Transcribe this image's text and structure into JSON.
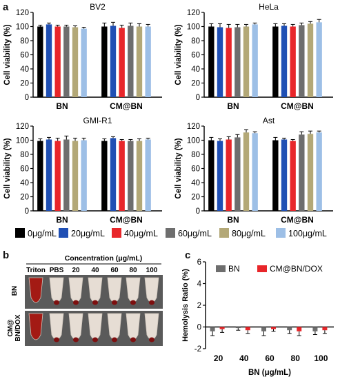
{
  "panel_labels": {
    "a": "a",
    "b": "b",
    "c": "c"
  },
  "colors": {
    "0": "#000000",
    "20": "#1f4fb4",
    "40": "#e8262a",
    "60": "#6e6e6e",
    "80": "#b3a877",
    "100": "#9dbfe6",
    "bn": "#6e6e6e",
    "cmbn_dox": "#e8262a"
  },
  "legend_a": [
    "0μg/mL",
    "20μg/mL",
    "40μg/mL",
    "60μg/mL",
    "80μg/mL",
    "100μg/mL"
  ],
  "photo": {
    "header": "Concentration (μg/mL)",
    "columns": [
      "Triton",
      "PBS",
      "20",
      "40",
      "60",
      "80",
      "100"
    ],
    "row_labels": [
      "BN",
      "CM@\nBN/DOX"
    ]
  },
  "chart_data": [
    {
      "type": "bar",
      "title": "BV2",
      "ylabel": "Cell viability (%)",
      "ylim": [
        0,
        120
      ],
      "yticks": [
        0,
        20,
        40,
        60,
        80,
        100,
        120
      ],
      "categories": [
        "BN",
        "CM@BN"
      ],
      "series": [
        {
          "name": "0μg/mL",
          "values": [
            100,
            100
          ],
          "errors": [
            2,
            5
          ]
        },
        {
          "name": "20μg/mL",
          "values": [
            103,
            101
          ],
          "errors": [
            2,
            5
          ]
        },
        {
          "name": "40μg/mL",
          "values": [
            100,
            98
          ],
          "errors": [
            2,
            4
          ]
        },
        {
          "name": "60μg/mL",
          "values": [
            100,
            101
          ],
          "errors": [
            2,
            4
          ]
        },
        {
          "name": "80μg/mL",
          "values": [
            99,
            100
          ],
          "errors": [
            2,
            4
          ]
        },
        {
          "name": "100μg/mL",
          "values": [
            97,
            100
          ],
          "errors": [
            2,
            3
          ]
        }
      ]
    },
    {
      "type": "bar",
      "title": "HeLa",
      "ylabel": "Cell viability (%)",
      "ylim": [
        0,
        120
      ],
      "yticks": [
        0,
        20,
        40,
        60,
        80,
        100,
        120
      ],
      "categories": [
        "BN",
        "CM@BN"
      ],
      "series": [
        {
          "name": "0μg/mL",
          "values": [
            100,
            100
          ],
          "errors": [
            4,
            4
          ]
        },
        {
          "name": "20μg/mL",
          "values": [
            99,
            101
          ],
          "errors": [
            5,
            3
          ]
        },
        {
          "name": "40μg/mL",
          "values": [
            98,
            100
          ],
          "errors": [
            5,
            3
          ]
        },
        {
          "name": "60μg/mL",
          "values": [
            99,
            102
          ],
          "errors": [
            4,
            3
          ]
        },
        {
          "name": "80μg/mL",
          "values": [
            100,
            104
          ],
          "errors": [
            3,
            3
          ]
        },
        {
          "name": "100μg/mL",
          "values": [
            103,
            106
          ],
          "errors": [
            2,
            4
          ]
        }
      ]
    },
    {
      "type": "bar",
      "title": "GMI-R1",
      "ylabel": "Cell viability (%)",
      "ylim": [
        0,
        120
      ],
      "yticks": [
        0,
        20,
        40,
        60,
        80,
        100,
        120
      ],
      "categories": [
        "BN",
        "CM@BN"
      ],
      "series": [
        {
          "name": "0μg/mL",
          "values": [
            99,
            99
          ],
          "errors": [
            3,
            3
          ]
        },
        {
          "name": "20μg/mL",
          "values": [
            101,
            103
          ],
          "errors": [
            3,
            2
          ]
        },
        {
          "name": "40μg/mL",
          "values": [
            99,
            99
          ],
          "errors": [
            4,
            2
          ]
        },
        {
          "name": "60μg/mL",
          "values": [
            101,
            99
          ],
          "errors": [
            5,
            2
          ]
        },
        {
          "name": "80μg/mL",
          "values": [
            99,
            99
          ],
          "errors": [
            4,
            3
          ]
        },
        {
          "name": "100μg/mL",
          "values": [
            100,
            101
          ],
          "errors": [
            3,
            2
          ]
        }
      ]
    },
    {
      "type": "bar",
      "title": "Ast",
      "ylabel": "Cell viability (%)",
      "ylim": [
        0,
        120
      ],
      "yticks": [
        0,
        20,
        40,
        60,
        80,
        100,
        120
      ],
      "categories": [
        "BN",
        "CM@BN"
      ],
      "series": [
        {
          "name": "0μg/mL",
          "values": [
            100,
            100
          ],
          "errors": [
            4,
            4
          ]
        },
        {
          "name": "20μg/mL",
          "values": [
            99,
            101
          ],
          "errors": [
            3,
            2
          ]
        },
        {
          "name": "40μg/mL",
          "values": [
            101,
            99
          ],
          "errors": [
            4,
            2
          ]
        },
        {
          "name": "60μg/mL",
          "values": [
            104,
            108
          ],
          "errors": [
            4,
            4
          ]
        },
        {
          "name": "80μg/mL",
          "values": [
            111,
            109
          ],
          "errors": [
            4,
            4
          ]
        },
        {
          "name": "100μg/mL",
          "values": [
            110,
            111
          ],
          "errors": [
            2,
            2
          ]
        }
      ]
    },
    {
      "type": "bar",
      "title": "",
      "ylabel": "Hemolysis Ratio (%)",
      "xlabel": "BN (μg/mL)",
      "ylim": [
        -2,
        6
      ],
      "yticks": [
        -2,
        0,
        2,
        4,
        6
      ],
      "categories": [
        "20",
        "40",
        "60",
        "80",
        "100"
      ],
      "series": [
        {
          "name": "BN",
          "values": [
            -0.4,
            -0.1,
            -0.4,
            -0.3,
            -0.4
          ],
          "errors": [
            0.4,
            0.2,
            0.4,
            0.3,
            0.3
          ]
        },
        {
          "name": "CM@BN/DOX",
          "values": [
            -0.2,
            -0.3,
            -0.2,
            -0.4,
            -0.3
          ],
          "errors": [
            0.3,
            0.3,
            0.2,
            0.4,
            0.3
          ]
        }
      ]
    }
  ]
}
